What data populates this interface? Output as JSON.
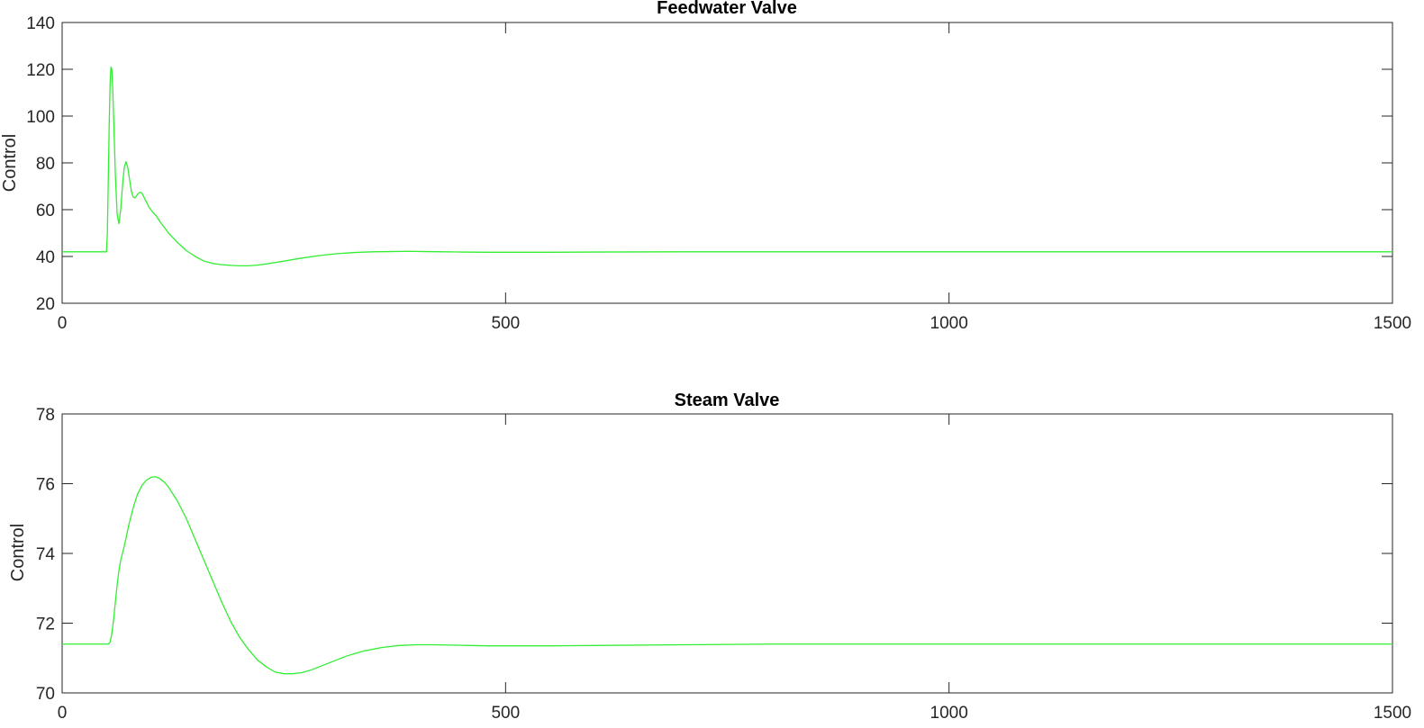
{
  "chart_data": [
    {
      "type": "line",
      "title": "Feedwater Valve",
      "xlabel": "",
      "ylabel": "Control",
      "xlim": [
        0,
        1500
      ],
      "ylim": [
        20,
        140
      ],
      "xticks": [
        0,
        500,
        1000,
        1500
      ],
      "yticks": [
        20,
        40,
        60,
        80,
        100,
        120,
        140
      ],
      "grid": false,
      "legend": "none",
      "line_color": "#33ee33",
      "series": [
        {
          "x": [
            0,
            50,
            51,
            52,
            53,
            54,
            55,
            56,
            57,
            58,
            60,
            62,
            64,
            66,
            68,
            70,
            72,
            74,
            76,
            78,
            80,
            82,
            84,
            86,
            88,
            90,
            92,
            94,
            96,
            98,
            100,
            103,
            106,
            110,
            115,
            120,
            130,
            140,
            150,
            160,
            170,
            180,
            190,
            200,
            210,
            220,
            230,
            240,
            250,
            270,
            290,
            310,
            330,
            350,
            370,
            390,
            410,
            430,
            450,
            480,
            500,
            550,
            600,
            700,
            800,
            1000,
            1200,
            1500
          ],
          "y": [
            42,
            42,
            50,
            72,
            95,
            113,
            121,
            120,
            112,
            100,
            75,
            58,
            54,
            60,
            70,
            78,
            80.5,
            78,
            73,
            68,
            65.5,
            65,
            66,
            67,
            67.5,
            67,
            65.5,
            64,
            62.5,
            61,
            60,
            58.5,
            57.5,
            55,
            52.5,
            50,
            46,
            42.5,
            40,
            38,
            37,
            36.5,
            36.2,
            36,
            36,
            36.3,
            36.8,
            37.4,
            38,
            39.3,
            40.4,
            41.2,
            41.7,
            42,
            42.1,
            42.2,
            42.1,
            42,
            41.9,
            41.8,
            41.8,
            41.8,
            41.9,
            42,
            42,
            42,
            42,
            42
          ]
        }
      ]
    },
    {
      "type": "line",
      "title": "Steam Valve",
      "xlabel": "",
      "ylabel": "Control",
      "xlim": [
        0,
        1500
      ],
      "ylim": [
        70,
        78
      ],
      "xticks": [
        0,
        500,
        1000,
        1500
      ],
      "yticks": [
        70,
        72,
        74,
        76,
        78
      ],
      "grid": false,
      "legend": "none",
      "line_color": "#33ee33",
      "series": [
        {
          "x": [
            0,
            52,
            54,
            56,
            58,
            60,
            62,
            64,
            66,
            68,
            70,
            75,
            80,
            85,
            90,
            95,
            100,
            105,
            110,
            115,
            120,
            130,
            140,
            150,
            160,
            170,
            180,
            190,
            200,
            210,
            220,
            230,
            240,
            250,
            260,
            270,
            280,
            290,
            300,
            310,
            320,
            330,
            340,
            350,
            360,
            380,
            400,
            420,
            440,
            460,
            480,
            500,
            550,
            600,
            700,
            800,
            1000,
            1200,
            1500
          ],
          "y": [
            71.4,
            71.4,
            71.45,
            71.7,
            72.1,
            72.6,
            73.1,
            73.5,
            73.8,
            74,
            74.2,
            74.8,
            75.3,
            75.7,
            75.95,
            76.1,
            76.18,
            76.2,
            76.15,
            76.05,
            75.9,
            75.5,
            75,
            74.4,
            73.8,
            73.2,
            72.6,
            72.05,
            71.6,
            71.25,
            70.95,
            70.75,
            70.6,
            70.55,
            70.55,
            70.58,
            70.65,
            70.75,
            70.85,
            70.95,
            71.05,
            71.13,
            71.2,
            71.25,
            71.3,
            71.36,
            71.38,
            71.38,
            71.37,
            71.36,
            71.35,
            71.35,
            71.35,
            71.36,
            71.38,
            71.4,
            71.4,
            71.4,
            71.4
          ]
        }
      ]
    }
  ]
}
